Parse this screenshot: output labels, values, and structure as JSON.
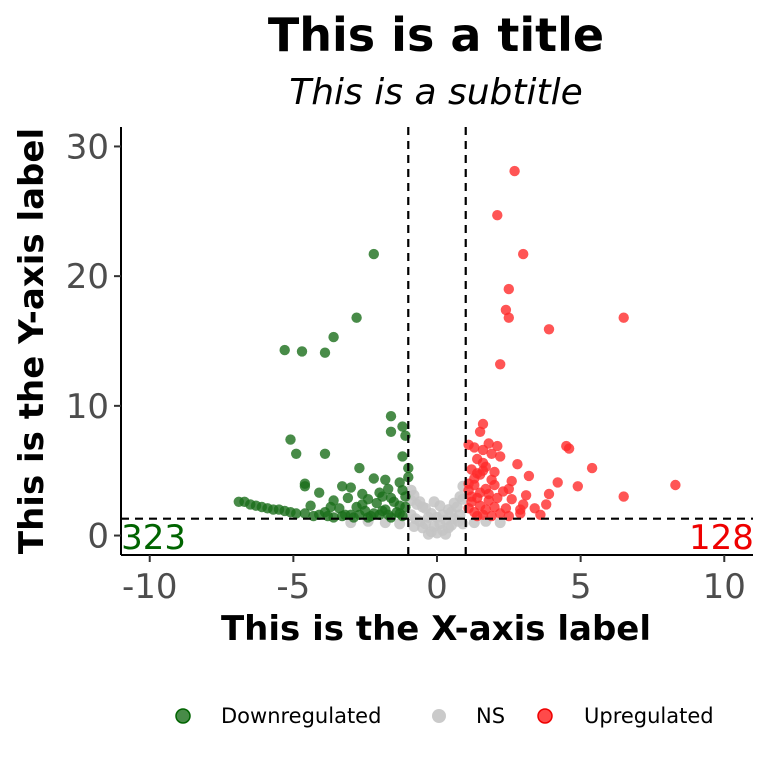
{
  "chart_data": {
    "type": "scatter",
    "title": "This is a title",
    "subtitle": "This is a subtitle",
    "xlabel": "This is the X-axis label",
    "ylabel": "This is the Y-axis label",
    "xlim": [
      -11,
      11
    ],
    "ylim": [
      -1.5,
      31.5
    ],
    "xticks": [
      -10,
      -5,
      0,
      5,
      10
    ],
    "xtick_labels": [
      "-10",
      "-5",
      "0",
      "5",
      "10"
    ],
    "yticks": [
      0,
      10,
      20,
      30
    ],
    "ytick_labels": [
      "0",
      "10",
      "20",
      "30"
    ],
    "grid": false,
    "legend_position": "bottom",
    "thresholds": {
      "x": [
        -1,
        1
      ],
      "y": 1.3
    },
    "counts": {
      "down": "323",
      "up": "128"
    },
    "colors": {
      "down": "#006400",
      "ns": "#c0c0c0",
      "up": "#ff0000",
      "count_down": "#006400",
      "count_up": "#ee0000"
    },
    "series": [
      {
        "name": "Downregulated",
        "color": "#1a6e1a",
        "points": [
          [
            -2.2,
            21.7
          ],
          [
            -2.8,
            16.8
          ],
          [
            -3.6,
            15.3
          ],
          [
            -5.3,
            14.3
          ],
          [
            -4.7,
            14.2
          ],
          [
            -3.9,
            14.1
          ],
          [
            -1.6,
            9.2
          ],
          [
            -1.2,
            8.4
          ],
          [
            -1.6,
            8.0
          ],
          [
            -1.1,
            7.7
          ],
          [
            -5.1,
            7.4
          ],
          [
            -4.9,
            6.3
          ],
          [
            -3.9,
            6.3
          ],
          [
            -1.2,
            6.1
          ],
          [
            -1.0,
            5.2
          ],
          [
            -2.7,
            5.2
          ],
          [
            -2.2,
            4.4
          ],
          [
            -1.8,
            4.3
          ],
          [
            -1.3,
            4.1
          ],
          [
            -1.0,
            4.5
          ],
          [
            -4.6,
            4.0
          ],
          [
            -4.6,
            3.8
          ],
          [
            -3.3,
            3.8
          ],
          [
            -3.0,
            3.7
          ],
          [
            -1.7,
            3.6
          ],
          [
            -1.2,
            3.5
          ],
          [
            -4.1,
            3.3
          ],
          [
            -2.6,
            3.2
          ],
          [
            -1.9,
            3.0
          ],
          [
            -1.1,
            3.0
          ],
          [
            -3.1,
            2.9
          ],
          [
            -2.4,
            2.8
          ],
          [
            -3.6,
            2.7
          ],
          [
            -1.5,
            2.6
          ],
          [
            -2.1,
            2.5
          ],
          [
            -1.3,
            2.3
          ],
          [
            -2.8,
            2.2
          ],
          [
            -3.4,
            2.1
          ],
          [
            -1.8,
            2.0
          ],
          [
            -1.1,
            2.2
          ],
          [
            -2.5,
            1.9
          ],
          [
            -3.9,
            1.8
          ],
          [
            -3.2,
            1.6
          ],
          [
            -1.4,
            1.8
          ],
          [
            -2.0,
            1.6
          ],
          [
            -2.9,
            1.4
          ],
          [
            -3.6,
            1.4
          ],
          [
            -2.4,
            1.4
          ],
          [
            -1.2,
            1.5
          ],
          [
            -1.6,
            1.4
          ],
          [
            -4.3,
            1.5
          ],
          [
            -3.0,
            1.6
          ],
          [
            -2.2,
            1.7
          ],
          [
            -1.9,
            1.9
          ],
          [
            -4.9,
            1.7
          ],
          [
            -5.3,
            1.9
          ],
          [
            -5.7,
            2.0
          ],
          [
            -6.1,
            2.2
          ],
          [
            -6.5,
            2.4
          ],
          [
            -6.9,
            2.6
          ],
          [
            -6.7,
            2.6
          ],
          [
            -6.3,
            2.3
          ],
          [
            -5.9,
            2.1
          ],
          [
            -5.5,
            2.0
          ],
          [
            -5.1,
            1.8
          ],
          [
            -4.6,
            1.7
          ],
          [
            -4.1,
            1.6
          ],
          [
            -3.8,
            1.5
          ],
          [
            -3.3,
            1.5
          ],
          [
            -2.7,
            1.6
          ],
          [
            -2.3,
            1.5
          ],
          [
            -1.7,
            1.6
          ],
          [
            -1.3,
            1.7
          ],
          [
            -3.7,
            2.2
          ],
          [
            -4.4,
            2.3
          ],
          [
            -2.6,
            2.4
          ],
          [
            -1.6,
            2.9
          ],
          [
            -2.0,
            3.3
          ]
        ]
      },
      {
        "name": "NS",
        "color": "#c4c4c4",
        "points": [
          [
            -0.9,
            3.5
          ],
          [
            -0.6,
            2.6
          ],
          [
            -0.4,
            2.1
          ],
          [
            -0.2,
            1.7
          ],
          [
            0.0,
            1.4
          ],
          [
            0.2,
            1.6
          ],
          [
            0.4,
            2.0
          ],
          [
            0.6,
            2.5
          ],
          [
            0.9,
            3.8
          ],
          [
            0.8,
            3.0
          ],
          [
            -0.8,
            3.1
          ],
          [
            -0.5,
            2.2
          ],
          [
            -0.3,
            1.4
          ],
          [
            0.1,
            0.9
          ],
          [
            0.3,
            1.2
          ],
          [
            0.5,
            1.8
          ],
          [
            0.7,
            2.2
          ],
          [
            -0.7,
            2.4
          ],
          [
            -0.1,
            0.7
          ],
          [
            -0.4,
            0.9
          ],
          [
            0.5,
            0.8
          ],
          [
            0.2,
            0.4
          ],
          [
            -0.2,
            0.3
          ],
          [
            0.0,
            0.2
          ],
          [
            -0.6,
            1.1
          ],
          [
            0.6,
            1.3
          ],
          [
            0.8,
            1.6
          ],
          [
            -0.9,
            1.6
          ],
          [
            -0.5,
            0.6
          ],
          [
            0.4,
            0.6
          ],
          [
            -0.8,
            0.7
          ],
          [
            0.9,
            0.9
          ],
          [
            -1.3,
            0.9
          ],
          [
            -1.8,
            1.0
          ],
          [
            -2.4,
            1.1
          ],
          [
            -3.0,
            1.0
          ],
          [
            1.3,
            1.0
          ],
          [
            1.7,
            1.1
          ],
          [
            2.2,
            1.0
          ],
          [
            -0.3,
            0.1
          ],
          [
            0.3,
            0.1
          ],
          [
            0.1,
            2.3
          ],
          [
            -0.1,
            2.6
          ],
          [
            0.9,
            2.8
          ],
          [
            -0.9,
            2.7
          ],
          [
            0.75,
            1.1
          ],
          [
            -0.75,
            1.3
          ]
        ]
      },
      {
        "name": "Upregulated",
        "color": "#ff2a2a",
        "points": [
          [
            2.7,
            28.1
          ],
          [
            2.1,
            24.7
          ],
          [
            3.0,
            21.7
          ],
          [
            2.5,
            19.0
          ],
          [
            2.4,
            17.4
          ],
          [
            2.5,
            16.8
          ],
          [
            6.5,
            16.8
          ],
          [
            3.9,
            15.9
          ],
          [
            2.2,
            13.2
          ],
          [
            1.6,
            8.6
          ],
          [
            1.5,
            8.0
          ],
          [
            1.8,
            7.1
          ],
          [
            1.1,
            7.0
          ],
          [
            2.1,
            6.9
          ],
          [
            1.3,
            6.8
          ],
          [
            1.6,
            6.6
          ],
          [
            4.5,
            6.9
          ],
          [
            4.6,
            6.7
          ],
          [
            1.9,
            6.3
          ],
          [
            2.2,
            6.1
          ],
          [
            1.4,
            5.9
          ],
          [
            1.6,
            5.6
          ],
          [
            2.8,
            5.5
          ],
          [
            5.4,
            5.2
          ],
          [
            1.2,
            5.1
          ],
          [
            2.0,
            4.9
          ],
          [
            1.5,
            4.7
          ],
          [
            3.2,
            4.6
          ],
          [
            2.6,
            4.2
          ],
          [
            4.2,
            4.1
          ],
          [
            8.3,
            3.9
          ],
          [
            4.9,
            3.8
          ],
          [
            1.3,
            3.9
          ],
          [
            1.7,
            3.6
          ],
          [
            2.3,
            3.4
          ],
          [
            1.1,
            3.5
          ],
          [
            3.1,
            3.1
          ],
          [
            3.9,
            3.2
          ],
          [
            6.5,
            3.0
          ],
          [
            1.4,
            2.9
          ],
          [
            2.1,
            2.9
          ],
          [
            2.6,
            2.8
          ],
          [
            1.8,
            2.7
          ],
          [
            1.2,
            2.6
          ],
          [
            3.0,
            2.4
          ],
          [
            1.5,
            2.3
          ],
          [
            2.0,
            2.2
          ],
          [
            2.4,
            2.1
          ],
          [
            1.1,
            2.1
          ],
          [
            1.7,
            2.0
          ],
          [
            3.6,
            1.6
          ],
          [
            2.9,
            1.7
          ],
          [
            1.3,
            1.8
          ],
          [
            2.2,
            1.7
          ],
          [
            1.6,
            1.6
          ],
          [
            1.9,
            1.5
          ],
          [
            1.4,
            1.5
          ],
          [
            3.8,
            2.4
          ],
          [
            3.4,
            2.1
          ],
          [
            2.5,
            3.6
          ],
          [
            1.9,
            4.3
          ],
          [
            1.3,
            4.4
          ],
          [
            1.6,
            5.0
          ],
          [
            1.1,
            4.0
          ],
          [
            1.8,
            3.2
          ],
          [
            1.2,
            3.0
          ],
          [
            2.9,
            2.0
          ],
          [
            2.5,
            1.5
          ],
          [
            1.5,
            3.3
          ],
          [
            2.0,
            3.9
          ],
          [
            1.4,
            4.8
          ],
          [
            1.7,
            5.3
          ]
        ]
      }
    ]
  }
}
